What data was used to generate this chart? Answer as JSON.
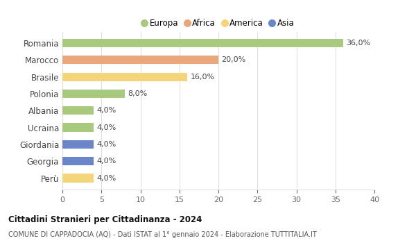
{
  "countries": [
    "Romania",
    "Marocco",
    "Brasile",
    "Polonia",
    "Albania",
    "Ucraina",
    "Giordania",
    "Georgia",
    "Perù"
  ],
  "values": [
    36.0,
    20.0,
    16.0,
    8.0,
    4.0,
    4.0,
    4.0,
    4.0,
    4.0
  ],
  "continents": [
    "Europa",
    "Africa",
    "America",
    "Europa",
    "Europa",
    "Europa",
    "Asia",
    "Asia",
    "America"
  ],
  "colors": {
    "Europa": "#a8c97e",
    "Africa": "#e8a87c",
    "America": "#f5d57a",
    "Asia": "#6b85c8"
  },
  "legend_order": [
    "Europa",
    "Africa",
    "America",
    "Asia"
  ],
  "title": "Cittadini Stranieri per Cittadinanza - 2024",
  "subtitle": "COMUNE DI CAPPADOCIA (AQ) - Dati ISTAT al 1° gennaio 2024 - Elaborazione TUTTITALIA.IT",
  "xlim": [
    0,
    40
  ],
  "xticks": [
    0,
    5,
    10,
    15,
    20,
    25,
    30,
    35,
    40
  ],
  "bg_color": "#ffffff",
  "grid_color": "#e0e0e0"
}
